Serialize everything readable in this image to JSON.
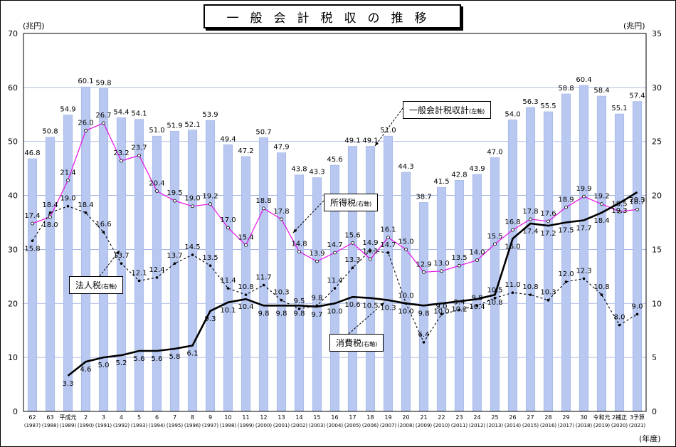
{
  "title": "一般会計税収の推移",
  "units": {
    "left": "(兆円)",
    "right": "(兆円)",
    "x": "(年度)"
  },
  "legend_labels": {
    "total": {
      "text": "一般会計税収計",
      "note": "(左軸)"
    },
    "income": {
      "text": "所得税",
      "note": "(右軸)"
    },
    "corporate": {
      "text": "法人税",
      "note": "(右軸)"
    },
    "consumption": {
      "text": "消費税",
      "note": "(右軸)"
    }
  },
  "colors": {
    "bar": "#b8c8f0",
    "income": "#e60fe6",
    "corporate": "#000000",
    "consumption": "#000000"
  },
  "chart_data": {
    "type": "bar",
    "categories": [
      {
        "era": "62",
        "year": "(1987)"
      },
      {
        "era": "63",
        "year": "(1988)"
      },
      {
        "era": "平成元",
        "year": "(1989)"
      },
      {
        "era": "2",
        "year": "(1990)"
      },
      {
        "era": "3",
        "year": "(1991)"
      },
      {
        "era": "4",
        "year": "(1992)"
      },
      {
        "era": "5",
        "year": "(1993)"
      },
      {
        "era": "6",
        "year": "(1994)"
      },
      {
        "era": "7",
        "year": "(1995)"
      },
      {
        "era": "8",
        "year": "(1996)"
      },
      {
        "era": "9",
        "year": "(1997)"
      },
      {
        "era": "10",
        "year": "(1998)"
      },
      {
        "era": "11",
        "year": "(1999)"
      },
      {
        "era": "12",
        "year": "(2000)"
      },
      {
        "era": "13",
        "year": "(2001)"
      },
      {
        "era": "14",
        "year": "(2002)"
      },
      {
        "era": "15",
        "year": "(2003)"
      },
      {
        "era": "16",
        "year": "(2004)"
      },
      {
        "era": "17",
        "year": "(2005)"
      },
      {
        "era": "18",
        "year": "(2006)"
      },
      {
        "era": "19",
        "year": "(2007)"
      },
      {
        "era": "20",
        "year": "(2008)"
      },
      {
        "era": "21",
        "year": "(2009)"
      },
      {
        "era": "22",
        "year": "(2010)"
      },
      {
        "era": "23",
        "year": "(2011)"
      },
      {
        "era": "24",
        "year": "(2012)"
      },
      {
        "era": "25",
        "year": "(2013)"
      },
      {
        "era": "26",
        "year": "(2014)"
      },
      {
        "era": "27",
        "year": "(2015)"
      },
      {
        "era": "28",
        "year": "(2016)"
      },
      {
        "era": "29",
        "year": "(2017)"
      },
      {
        "era": "30",
        "year": "(2018)"
      },
      {
        "era": "令和元",
        "year": "(2019)"
      },
      {
        "era": "2補正",
        "year": "(2020)"
      },
      {
        "era": "3予算",
        "year": "(2021)"
      }
    ],
    "left_axis": {
      "min": 0,
      "max": 70,
      "step": 10
    },
    "right_axis": {
      "min": 0,
      "max": 35,
      "step": 5
    },
    "grid": true,
    "series": [
      {
        "key": "total",
        "name": "一般会計税収計",
        "axis": "left",
        "type": "bar",
        "values": [
          46.8,
          50.8,
          54.9,
          60.1,
          59.8,
          54.4,
          54.1,
          51.0,
          51.9,
          52.1,
          53.9,
          49.4,
          47.2,
          50.7,
          47.9,
          43.8,
          43.3,
          45.6,
          49.1,
          49.1,
          51.0,
          44.3,
          38.7,
          41.5,
          42.8,
          43.9,
          47.0,
          54.0,
          56.3,
          55.5,
          58.8,
          60.4,
          58.4,
          55.1,
          57.4
        ]
      },
      {
        "key": "income",
        "name": "所得税",
        "axis": "right",
        "type": "line",
        "values": [
          17.4,
          18.0,
          21.4,
          26.0,
          26.7,
          23.2,
          23.7,
          20.4,
          19.5,
          19.0,
          19.2,
          17.0,
          15.4,
          18.8,
          17.8,
          14.8,
          13.9,
          14.7,
          15.6,
          14.1,
          16.1,
          15.0,
          12.9,
          13.0,
          13.5,
          14.0,
          15.5,
          16.8,
          17.8,
          17.6,
          18.9,
          19.9,
          19.2,
          18.5,
          18.7
        ]
      },
      {
        "key": "corporate",
        "name": "法人税",
        "axis": "right",
        "type": "line",
        "values": [
          15.8,
          18.4,
          19.0,
          18.4,
          16.6,
          13.7,
          12.1,
          12.4,
          13.7,
          14.5,
          13.5,
          11.4,
          10.8,
          11.7,
          10.3,
          9.5,
          9.8,
          11.4,
          13.3,
          14.9,
          14.7,
          10.0,
          6.4,
          9.0,
          9.4,
          9.8,
          10.5,
          11.0,
          10.8,
          10.3,
          12.0,
          12.3,
          10.8,
          8.0,
          9.0
        ]
      },
      {
        "key": "consumption",
        "name": "消費税",
        "axis": "right",
        "type": "line",
        "values": [
          null,
          null,
          3.3,
          4.6,
          5.0,
          5.2,
          5.6,
          5.6,
          5.8,
          6.1,
          9.3,
          10.1,
          10.4,
          9.8,
          9.8,
          9.8,
          9.7,
          10.0,
          10.6,
          10.5,
          10.3,
          10.0,
          9.8,
          10.0,
          10.2,
          10.4,
          10.8,
          16.0,
          17.4,
          17.2,
          17.5,
          17.7,
          18.4,
          19.3,
          20.3
        ]
      }
    ]
  }
}
